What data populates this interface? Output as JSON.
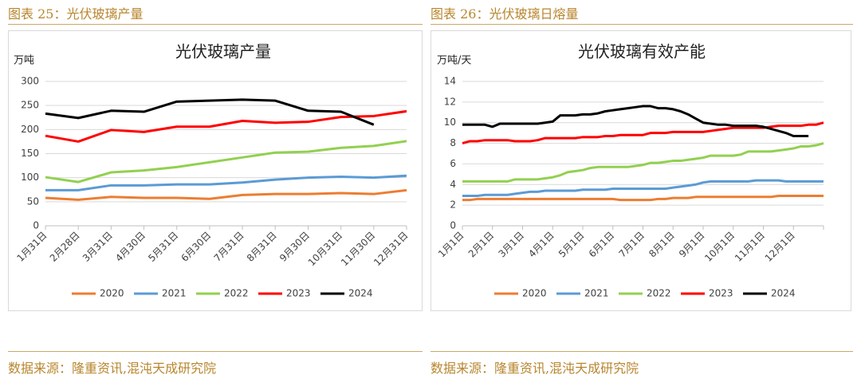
{
  "chart_data": [
    {
      "type": "line",
      "figure_label": "图表 25：光伏玻璃产量",
      "title": "光伏玻璃产量",
      "y_label": "万吨",
      "categories": [
        "1月31日",
        "2月28日",
        "3月31日",
        "4月30日",
        "5月31日",
        "6月30日",
        "7月31日",
        "8月31日",
        "9月30日",
        "10月31日",
        "11月30日",
        "12月31日"
      ],
      "series": [
        {
          "name": "2020",
          "color": "#ed7d31",
          "values": [
            58,
            54,
            60,
            58,
            58,
            56,
            64,
            66,
            66,
            68,
            66,
            74
          ]
        },
        {
          "name": "2021",
          "color": "#5b9bd5",
          "values": [
            74,
            74,
            84,
            84,
            86,
            86,
            90,
            96,
            100,
            102,
            100,
            104
          ]
        },
        {
          "name": "2022",
          "color": "#92d050",
          "values": [
            101,
            91,
            111,
            115,
            122,
            132,
            142,
            152,
            154,
            162,
            166,
            176
          ]
        },
        {
          "name": "2023",
          "color": "#ff0000",
          "values": [
            187,
            175,
            199,
            195,
            206,
            206,
            218,
            214,
            216,
            226,
            228,
            238
          ]
        },
        {
          "name": "2024",
          "color": "#000000",
          "values": [
            233,
            224,
            239,
            237,
            258,
            260,
            262,
            260,
            239,
            237,
            210,
            null
          ]
        }
      ],
      "ylim": [
        0,
        300
      ],
      "yticks": [
        0,
        50,
        100,
        150,
        200,
        250,
        300
      ],
      "grid": true,
      "source": "数据来源：隆重资讯,混沌天成研究院"
    },
    {
      "type": "line",
      "figure_label": "图表 26：光伏玻璃日熔量",
      "title": "光伏玻璃有效产能",
      "y_label": "万吨/天",
      "categories": [
        "1月1日",
        null,
        null,
        null,
        "2月1日",
        null,
        null,
        null,
        "3月1日",
        null,
        null,
        null,
        "4月1日",
        null,
        null,
        null,
        "5月1日",
        null,
        null,
        null,
        "6月1日",
        null,
        null,
        null,
        "7月1日",
        null,
        null,
        null,
        "8月1日",
        null,
        null,
        null,
        "9月1日",
        null,
        null,
        null,
        "10月1日",
        null,
        null,
        null,
        "11月1日",
        null,
        null,
        null,
        "12月1日",
        null,
        null,
        null,
        null
      ],
      "series": [
        {
          "name": "2020",
          "color": "#ed7d31",
          "values": [
            2.5,
            2.5,
            2.6,
            2.6,
            2.6,
            2.6,
            2.6,
            2.6,
            2.6,
            2.6,
            2.6,
            2.6,
            2.6,
            2.6,
            2.6,
            2.6,
            2.6,
            2.6,
            2.6,
            2.6,
            2.6,
            2.5,
            2.5,
            2.5,
            2.5,
            2.5,
            2.6,
            2.6,
            2.7,
            2.7,
            2.7,
            2.8,
            2.8,
            2.8,
            2.8,
            2.8,
            2.8,
            2.8,
            2.8,
            2.8,
            2.8,
            2.8,
            2.9,
            2.9,
            2.9,
            2.9,
            2.9,
            2.9,
            2.9
          ]
        },
        {
          "name": "2021",
          "color": "#5b9bd5",
          "values": [
            2.9,
            2.9,
            2.9,
            3.0,
            3.0,
            3.0,
            3.0,
            3.1,
            3.2,
            3.3,
            3.3,
            3.4,
            3.4,
            3.4,
            3.4,
            3.4,
            3.5,
            3.5,
            3.5,
            3.5,
            3.6,
            3.6,
            3.6,
            3.6,
            3.6,
            3.6,
            3.6,
            3.6,
            3.7,
            3.8,
            3.9,
            4.0,
            4.2,
            4.3,
            4.3,
            4.3,
            4.3,
            4.3,
            4.3,
            4.4,
            4.4,
            4.4,
            4.4,
            4.3,
            4.3,
            4.3,
            4.3,
            4.3,
            4.3
          ]
        },
        {
          "name": "2022",
          "color": "#92d050",
          "values": [
            4.3,
            4.3,
            4.3,
            4.3,
            4.3,
            4.3,
            4.3,
            4.5,
            4.5,
            4.5,
            4.5,
            4.6,
            4.7,
            4.9,
            5.2,
            5.3,
            5.4,
            5.6,
            5.7,
            5.7,
            5.7,
            5.7,
            5.7,
            5.8,
            5.9,
            6.1,
            6.1,
            6.2,
            6.3,
            6.3,
            6.4,
            6.5,
            6.6,
            6.8,
            6.8,
            6.8,
            6.8,
            6.9,
            7.2,
            7.2,
            7.2,
            7.2,
            7.3,
            7.4,
            7.5,
            7.7,
            7.7,
            7.8,
            8.0
          ]
        },
        {
          "name": "2023",
          "color": "#ff0000",
          "values": [
            8.0,
            8.2,
            8.2,
            8.3,
            8.3,
            8.3,
            8.3,
            8.2,
            8.2,
            8.2,
            8.3,
            8.5,
            8.5,
            8.5,
            8.5,
            8.5,
            8.6,
            8.6,
            8.6,
            8.7,
            8.7,
            8.8,
            8.8,
            8.8,
            8.8,
            9.0,
            9.0,
            9.0,
            9.1,
            9.1,
            9.1,
            9.1,
            9.1,
            9.2,
            9.3,
            9.4,
            9.5,
            9.5,
            9.5,
            9.5,
            9.5,
            9.6,
            9.7,
            9.7,
            9.7,
            9.7,
            9.8,
            9.8,
            10.0
          ]
        },
        {
          "name": "2024",
          "color": "#000000",
          "values": [
            9.8,
            9.8,
            9.8,
            9.8,
            9.6,
            9.9,
            9.9,
            9.9,
            9.9,
            9.9,
            9.9,
            10.0,
            10.1,
            10.7,
            10.7,
            10.7,
            10.8,
            10.8,
            10.9,
            11.1,
            11.2,
            11.3,
            11.4,
            11.5,
            11.6,
            11.6,
            11.4,
            11.4,
            11.3,
            11.1,
            10.8,
            10.4,
            10.0,
            9.9,
            9.8,
            9.8,
            9.7,
            9.7,
            9.7,
            9.7,
            9.6,
            9.4,
            9.2,
            9.0,
            8.7,
            8.7,
            8.7,
            null,
            null
          ]
        }
      ],
      "ylim": [
        0,
        14
      ],
      "yticks": [
        0,
        2,
        4,
        6,
        8,
        10,
        12,
        14
      ],
      "grid": true,
      "source": "数据来源：隆重资讯,混沌天成研究院"
    }
  ]
}
